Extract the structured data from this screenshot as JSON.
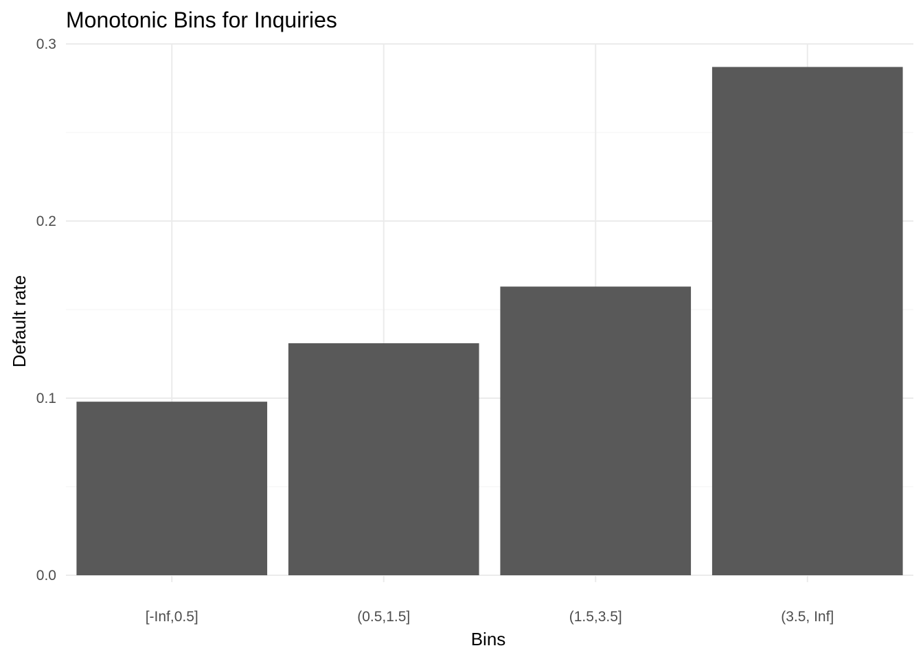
{
  "chart_data": {
    "type": "bar",
    "title": "Monotonic Bins for Inquiries",
    "xlabel": "Bins",
    "ylabel": "Default rate",
    "categories": [
      "[-Inf,0.5]",
      "(0.5,1.5]",
      "(1.5,3.5]",
      "(3.5, Inf]"
    ],
    "values": [
      0.098,
      0.131,
      0.163,
      0.287
    ],
    "ylim": [
      0,
      0.3
    ],
    "yticks": [
      0.0,
      0.1,
      0.2,
      0.3
    ],
    "ytick_labels": [
      "0.0",
      "0.1",
      "0.2",
      "0.3"
    ],
    "grid": true,
    "legend": "none",
    "bar_color": "#595959"
  }
}
